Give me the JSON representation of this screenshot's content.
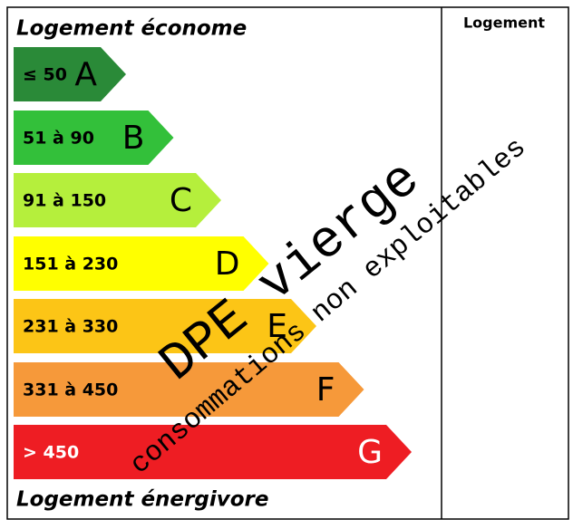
{
  "header": {
    "title": "Logement économe",
    "column": "Logement"
  },
  "footer": "Logement énergivore",
  "classes": [
    {
      "range": "≤ 50",
      "letter": "A",
      "color": "#2a8a38"
    },
    {
      "range": "51 à 90",
      "letter": "B",
      "color": "#33c03a"
    },
    {
      "range": "91 à 150",
      "letter": "C",
      "color": "#b5ef3c"
    },
    {
      "range": "151 à 230",
      "letter": "D",
      "color": "#ffff00"
    },
    {
      "range": "231 à 330",
      "letter": "E",
      "color": "#fcc516"
    },
    {
      "range": "331 à 450",
      "letter": "F",
      "color": "#f6993a"
    },
    {
      "range": "> 450",
      "letter": "G",
      "color": "#ee1d23"
    }
  ],
  "stamp": {
    "title": "DPE vierge",
    "subtitle": "consommations non exploitables"
  }
}
